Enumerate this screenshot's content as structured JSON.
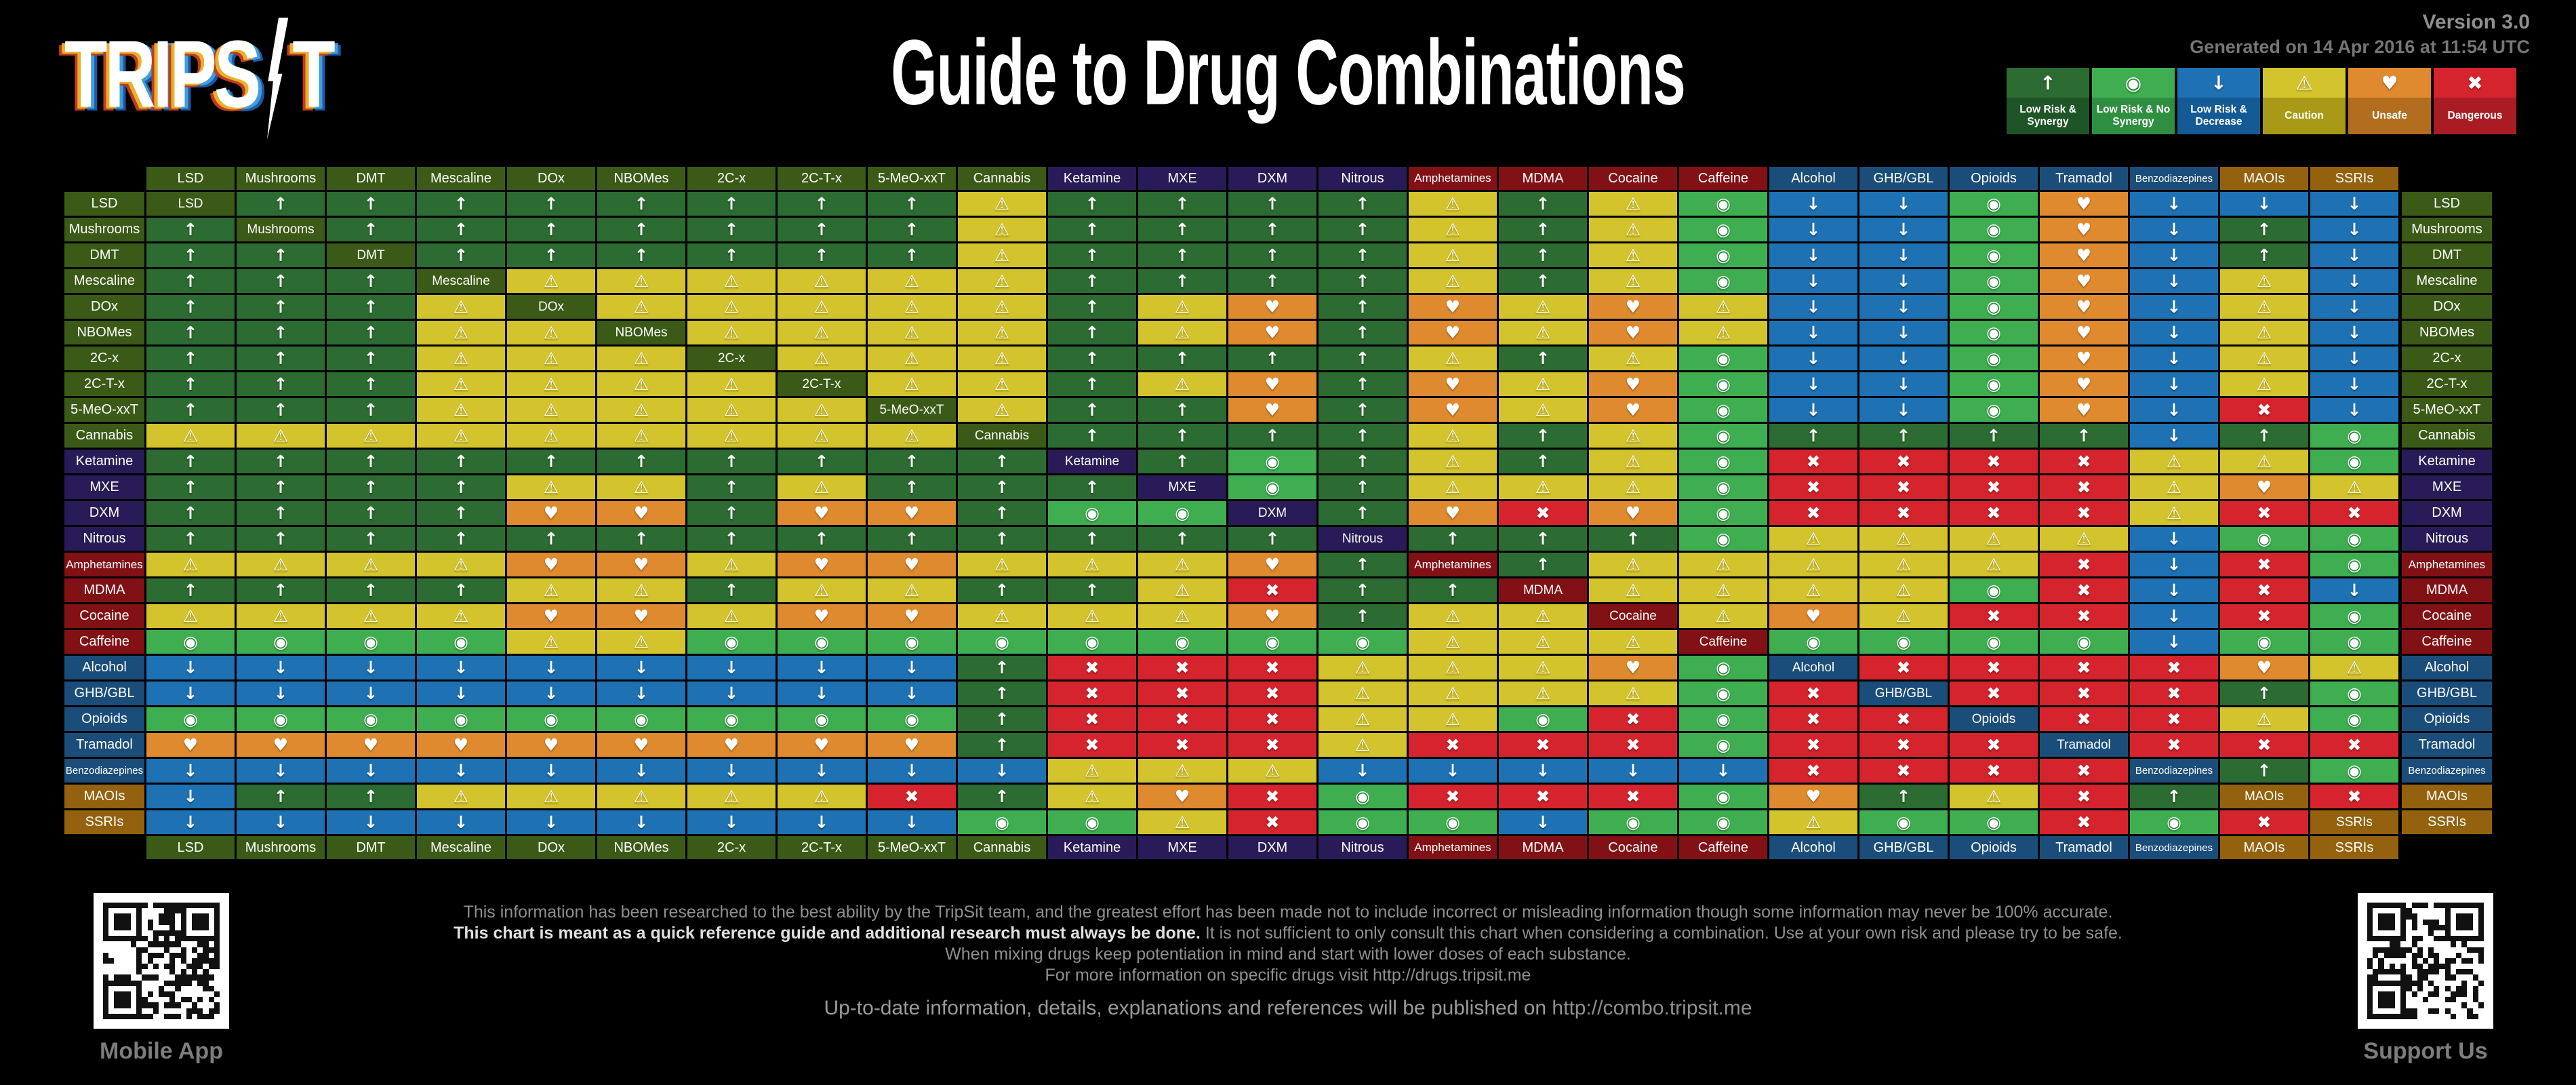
{
  "meta": {
    "version": "Version 3.0",
    "generated": "Generated on 14 Apr 2016 at 11:54 UTC"
  },
  "logo": {
    "part1": "TRIPS",
    "part2": "T",
    "bolt_icon": "lightning-bolt"
  },
  "title": "Guide to Drug Combinations",
  "legend": [
    {
      "code": "S",
      "label": "Low Risk & Synergy",
      "icon": "arrow-up-icon",
      "glyph": "↑",
      "bg": "#2c6b31",
      "label_bg": "#1f5426"
    },
    {
      "code": "N",
      "label": "Low Risk & No Synergy",
      "icon": "circle-dot-icon",
      "glyph": "◉",
      "bg": "#3fae51",
      "label_bg": "#2f8f41"
    },
    {
      "code": "D",
      "label": "Low Risk & Decrease",
      "icon": "arrow-down-icon",
      "glyph": "↓",
      "bg": "#1e72b4",
      "label_bg": "#145a94"
    },
    {
      "code": "C",
      "label": "Caution",
      "icon": "warning-icon",
      "glyph": "⚠",
      "bg": "#d3c32c",
      "label_bg": "#a89a16"
    },
    {
      "code": "U",
      "label": "Unsafe",
      "icon": "heartbeat-icon",
      "glyph": "♥",
      "bg": "#df8a2e",
      "label_bg": "#b26d1f"
    },
    {
      "code": "X",
      "label": "Dangerous",
      "icon": "cross-icon",
      "glyph": "✖",
      "bg": "#d5242e",
      "label_bg": "#aa1c24"
    }
  ],
  "category_colors": {
    "psy": "#3b5a17",
    "dis": "#281b57",
    "stim": "#821116",
    "dep": "#1b4d7a",
    "sero": "#94620e"
  },
  "substances": [
    {
      "name": "LSD",
      "cat": "psy"
    },
    {
      "name": "Mushrooms",
      "cat": "psy"
    },
    {
      "name": "DMT",
      "cat": "psy"
    },
    {
      "name": "Mescaline",
      "cat": "psy"
    },
    {
      "name": "DOx",
      "cat": "psy"
    },
    {
      "name": "NBOMes",
      "cat": "psy"
    },
    {
      "name": "2C-x",
      "cat": "psy"
    },
    {
      "name": "2C-T-x",
      "cat": "psy"
    },
    {
      "name": "5-MeO-xxT",
      "cat": "psy"
    },
    {
      "name": "Cannabis",
      "cat": "psy"
    },
    {
      "name": "Ketamine",
      "cat": "dis"
    },
    {
      "name": "MXE",
      "cat": "dis"
    },
    {
      "name": "DXM",
      "cat": "dis"
    },
    {
      "name": "Nitrous",
      "cat": "dis"
    },
    {
      "name": "Amphetamines",
      "cat": "stim"
    },
    {
      "name": "MDMA",
      "cat": "stim"
    },
    {
      "name": "Cocaine",
      "cat": "stim"
    },
    {
      "name": "Caffeine",
      "cat": "stim"
    },
    {
      "name": "Alcohol",
      "cat": "dep"
    },
    {
      "name": "GHB/GBL",
      "cat": "dep"
    },
    {
      "name": "Opioids",
      "cat": "dep"
    },
    {
      "name": "Tramadol",
      "cat": "dep"
    },
    {
      "name": "Benzodiazepines",
      "cat": "dep"
    },
    {
      "name": "MAOIs",
      "cat": "sero"
    },
    {
      "name": "SSRIs",
      "cat": "sero"
    }
  ],
  "chart_data": {
    "type": "heatmap",
    "title": "Guide to Drug Combinations",
    "categories": [
      "LSD",
      "Mushrooms",
      "DMT",
      "Mescaline",
      "DOx",
      "NBOMes",
      "2C-x",
      "2C-T-x",
      "5-MeO-xxT",
      "Cannabis",
      "Ketamine",
      "MXE",
      "DXM",
      "Nitrous",
      "Amphetamines",
      "MDMA",
      "Cocaine",
      "Caffeine",
      "Alcohol",
      "GHB/GBL",
      "Opioids",
      "Tramadol",
      "Benzodiazepines",
      "MAOIs",
      "SSRIs"
    ],
    "legend": {
      "S": "Low Risk & Synergy",
      "N": "Low Risk & No Synergy",
      "D": "Low Risk & Decrease",
      "C": "Caution",
      "U": "Unsafe",
      "X": "Dangerous",
      "-": "self"
    },
    "matrix": [
      "-SSSSSSSSCSSSSCSCNDDNUDDD",
      "S-SSSSSSSCSSSSCSCNDDNUDSD",
      "SS-SSSSSSCSSSSCSCNDDNUDSD",
      "SSS-CCCCCCSSSSCSCNDDNUDCD",
      "SSSC-CCCCCSCUSUCUCDDNUDCD",
      "SSSCC-CCCCSCUSUCUCDDNUDCD",
      "SSSCCC-CCCSSSSCSCNDDNUDCD",
      "SSSCCCC-CCSCUSUCUNDDNUDCD",
      "SSSCCCCC-CSSUSUCUNDDNUDXD",
      "CCCCCCCCC-SSSSCSCNSSSSDSN",
      "SSSSSSSSSS-SNSCSCNXXXXCCN",
      "SSSSCCSCSSS-NSCCCNXXXXCUC",
      "SSSSUUSUUSNN-SUXUNXXXXCXX",
      "SSSSSSSSSSSSS-SSSNCCCCDNN",
      "CCCCUUCUUCCCUS-SCCCCCXDXN",
      "SSSSCCSCCSSCXSS-CCCCNXDXD",
      "CCCCUUCUUCCCUSCC-CUCXXDXN",
      "NNNNCCNNNNNNNNCCC-NNNNDNN",
      "DDDDDDDDDSXXXCCCUN-XXXXUC",
      "DDDDDDDDDSXXXCCCCNX-XXXSN",
      "NNNNNNNNNSXXXCCNXNXX-XXCN",
      "UUUUUUUUUSXXXCXXXNXXX-XXX",
      "DDDDDDDDDDCCCDDDDDXXXX-SN",
      "DSSCCCCCXSCUXNXXXNUSCXS-X",
      "DDDDDDDDDNNCXNNDNNCNNXNX-"
    ]
  },
  "footer": {
    "line1": "This information has been researched to the best ability by the TripSit team, and the greatest effort has been made not to include incorrect or misleading information though some information may never be 100% accurate.",
    "line2_bold": "This chart is meant as a quick reference guide and additional research must always be done.",
    "line2_rest": " It is not sufficient to only consult this chart when considering a combination. Use at your own risk and please try to be safe.",
    "line3": "When mixing drugs keep potentiation in mind and start with lower doses of each substance.",
    "line4_prefix": "For more information on specific drugs visit ",
    "line4_link": "http://drugs.tripsit.me",
    "line5_prefix": "Up-to-date information, details, explanations and references will be published on ",
    "line5_link": "http://combo.tripsit.me"
  },
  "qr": {
    "left_caption": "Mobile App",
    "right_caption": "Support Us"
  }
}
